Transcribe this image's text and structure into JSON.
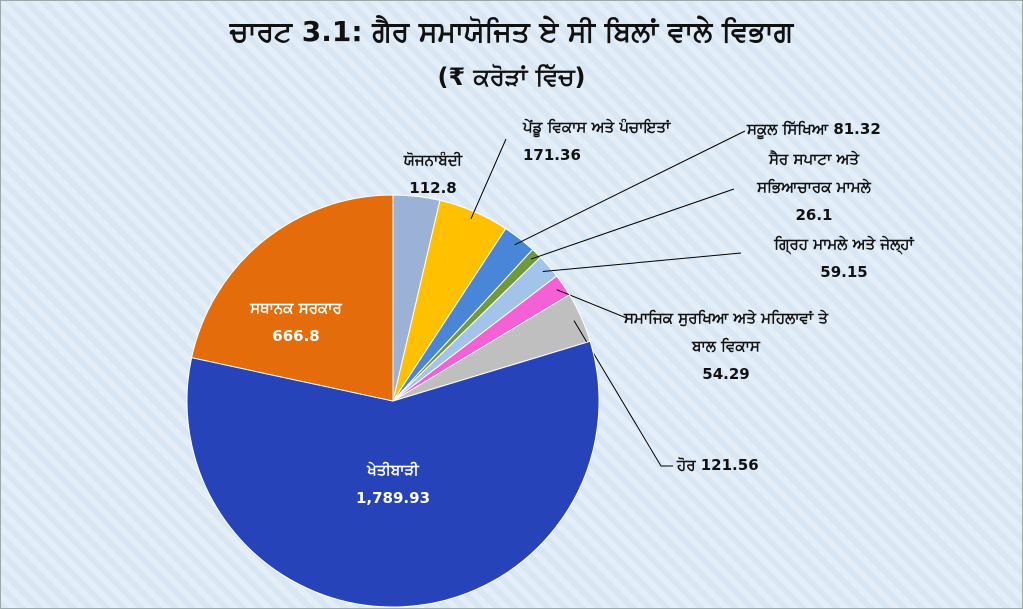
{
  "chart_data": {
    "type": "pie",
    "title": "ਚਾਰਟ 3.1: ਗੈਰ ਸਮਾਯੋਜਿਤ ਏ ਸੀ ਬਿਲਾਂ ਵਾਲੇ ਵਿਭਾਗ",
    "subtitle": "(₹ ਕਰੋੜਾਂ ਵਿੱਚ)",
    "categories": [
      "ਯੋਜਨਾਬੰਦੀ",
      "ਪੇਂਡੂ ਵਿਕਾਸ ਅਤੇ ਪੰਚਾਇਤਾਂ",
      "ਸਕੂਲ ਸਿੱਖਿਆ",
      "ਸੈਰ ਸਪਾਟਾ ਅਤੇ ਸਭਿਆਚਾਰਕ ਮਾਮਲੇ",
      "ਗ੍ਰਿਹ ਮਾਮਲੇ ਅਤੇ ਜੇਲ੍ਹਾਂ",
      "ਸਮਾਜਿਕ ਸੁਰਖਿਆ ਅਤੇ ਮਹਿਲਾਵਾਂ ਤੇ ਬਾਲ ਵਿਕਾਸ",
      "ਹੋਰ",
      "ਖੇਤੀਬਾੜੀ",
      "ਸਥਾਨਕ ਸਰਕਾਰ"
    ],
    "values": [
      112.8,
      171.36,
      81.32,
      26.1,
      59.15,
      54.29,
      121.56,
      1789.93,
      666.8
    ],
    "value_labels": [
      "112.8",
      "171.36",
      "81.32",
      "26.1",
      "59.15",
      "54.29",
      "121.56",
      "1,789.93",
      "666.8"
    ],
    "colors": [
      "#9bb1d6",
      "#ffc000",
      "#4a86d8",
      "#6f9a3a",
      "#a3c4ea",
      "#f560d6",
      "#bfbfbf",
      "#2743b9",
      "#e46c0a"
    ]
  }
}
